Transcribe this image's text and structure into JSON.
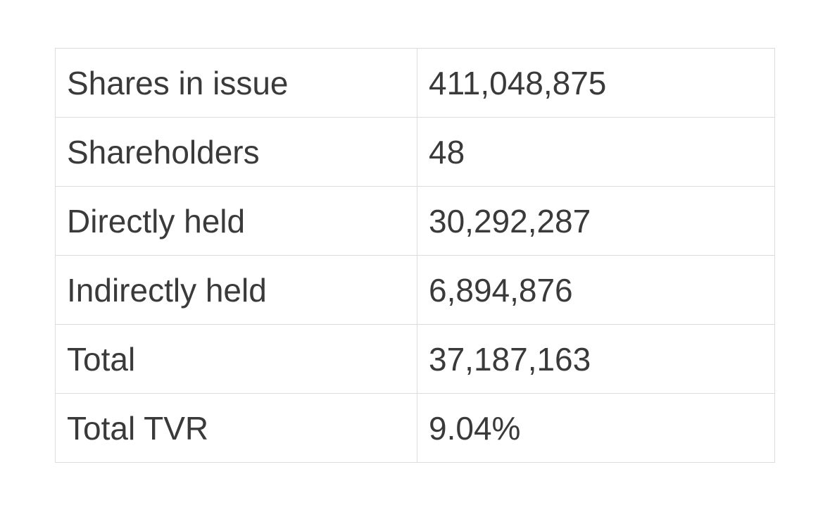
{
  "table": {
    "rows": [
      [
        "Shares in issue",
        "411,048,875"
      ],
      [
        "Shareholders",
        "48"
      ],
      [
        "Directly held",
        "30,292,287"
      ],
      [
        "Indirectly held",
        "6,894,876"
      ],
      [
        "Total",
        "37,187,163"
      ],
      [
        "Total TVR",
        "9.04%"
      ]
    ]
  }
}
